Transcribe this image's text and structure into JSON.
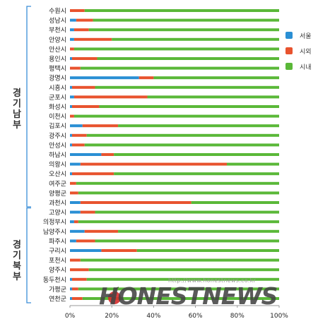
{
  "chart_data": {
    "type": "bar",
    "stacked": "percent",
    "orientation": "horizontal",
    "categories": [
      "수원시",
      "성남시",
      "부천시",
      "안양시",
      "안산시",
      "용인시",
      "평택시",
      "광명시",
      "시흥시",
      "군포시",
      "화성시",
      "이천시",
      "김포시",
      "광주시",
      "안성시",
      "하남시",
      "의왕시",
      "오산시",
      "여주군",
      "양평군",
      "과천시",
      "고양시",
      "의정부시",
      "남양주시",
      "파주시",
      "구리시",
      "포천시",
      "양주시",
      "동두천시",
      "가평군",
      "연천군"
    ],
    "series": [
      {
        "name": "서울",
        "color": "#2a8fd4",
        "values": [
          0,
          3,
          2,
          2,
          0,
          1,
          0,
          33,
          1,
          2,
          1,
          0,
          6,
          1,
          1,
          15,
          5,
          1,
          0,
          0,
          5,
          5,
          2,
          7,
          3,
          15,
          0,
          0,
          1,
          1,
          1
        ]
      },
      {
        "name": "시외",
        "color": "#e8532e",
        "values": [
          7,
          8,
          7,
          18,
          2,
          12,
          5,
          7,
          11,
          35,
          13,
          2,
          17,
          7,
          6,
          6,
          70,
          20,
          3,
          4,
          53,
          7,
          2,
          16,
          9,
          17,
          5,
          9,
          7,
          3,
          5
        ]
      },
      {
        "name": "시내",
        "color": "#5ab838",
        "values": [
          93,
          89,
          91,
          80,
          98,
          87,
          95,
          60,
          88,
          63,
          86,
          98,
          77,
          92,
          93,
          79,
          25,
          79,
          97,
          96,
          42,
          88,
          96,
          77,
          88,
          68,
          95,
          91,
          92,
          96,
          94
        ]
      }
    ],
    "xlim": [
      0,
      100
    ],
    "x_ticks": [
      "0%",
      "20%",
      "40%",
      "60%",
      "80%",
      "100%"
    ],
    "groups": [
      {
        "label": "경기남부",
        "from": 0,
        "to": 20
      },
      {
        "label": "경기북부",
        "from": 21,
        "to": 30
      }
    ],
    "legend_position": "right",
    "grid": false
  },
  "watermark": {
    "url": "http://www.honestnews.co.kr",
    "logo": "HONESTNEWS"
  }
}
